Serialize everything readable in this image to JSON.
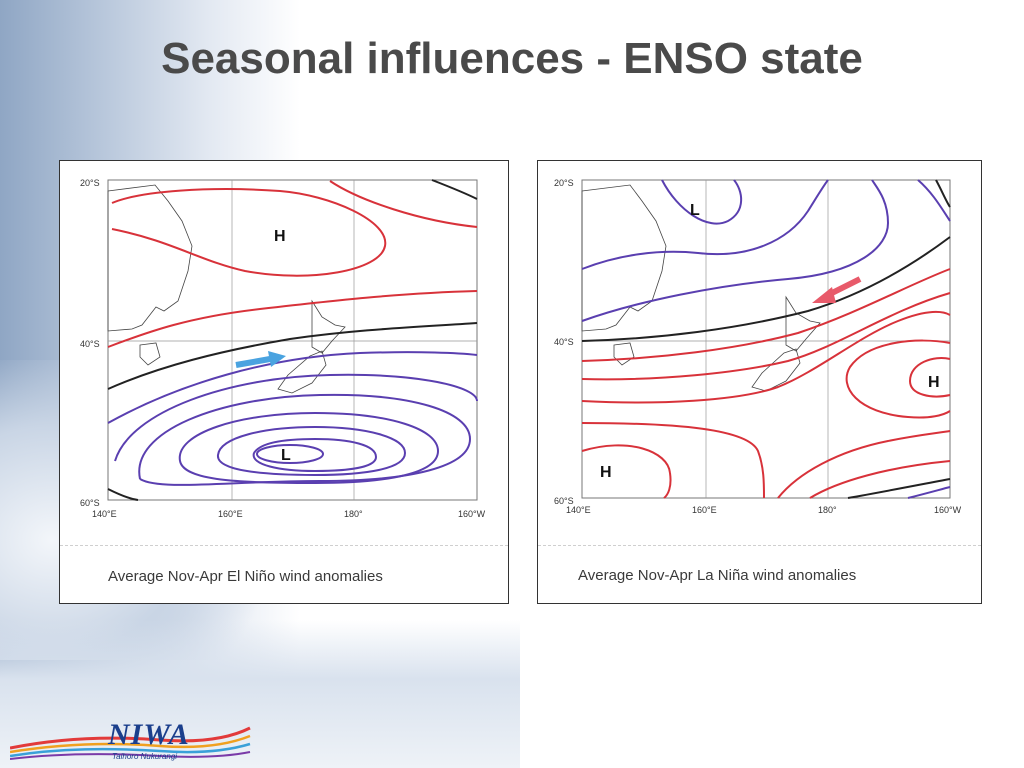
{
  "slide": {
    "title": "Seasonal influences - ENSO state"
  },
  "maps": [
    {
      "caption": "Average Nov-Apr El Niño wind anomalies",
      "lat_labels": [
        "20°S",
        "40°S",
        "60°S"
      ],
      "lon_labels": [
        "140°E",
        "160°E",
        "180°",
        "160°W"
      ],
      "pressure_labels": [
        "H",
        "L"
      ],
      "arrow_color": "#4aa3e0"
    },
    {
      "caption": "Average Nov-Apr La Niña wind anomalies",
      "lat_labels": [
        "20°S",
        "40°S",
        "60°S"
      ],
      "lon_labels": [
        "140°E",
        "160°E",
        "180°",
        "160°W"
      ],
      "pressure_labels": [
        "L",
        "H",
        "H"
      ],
      "arrow_color": "#e85a6a"
    }
  ],
  "colors": {
    "positive_contour": "#d8323a",
    "negative_contour": "#5a3fb0",
    "zero_contour": "#222222"
  },
  "logo": {
    "name": "NIWA",
    "tagline": "Taihoro Nukurangi"
  }
}
